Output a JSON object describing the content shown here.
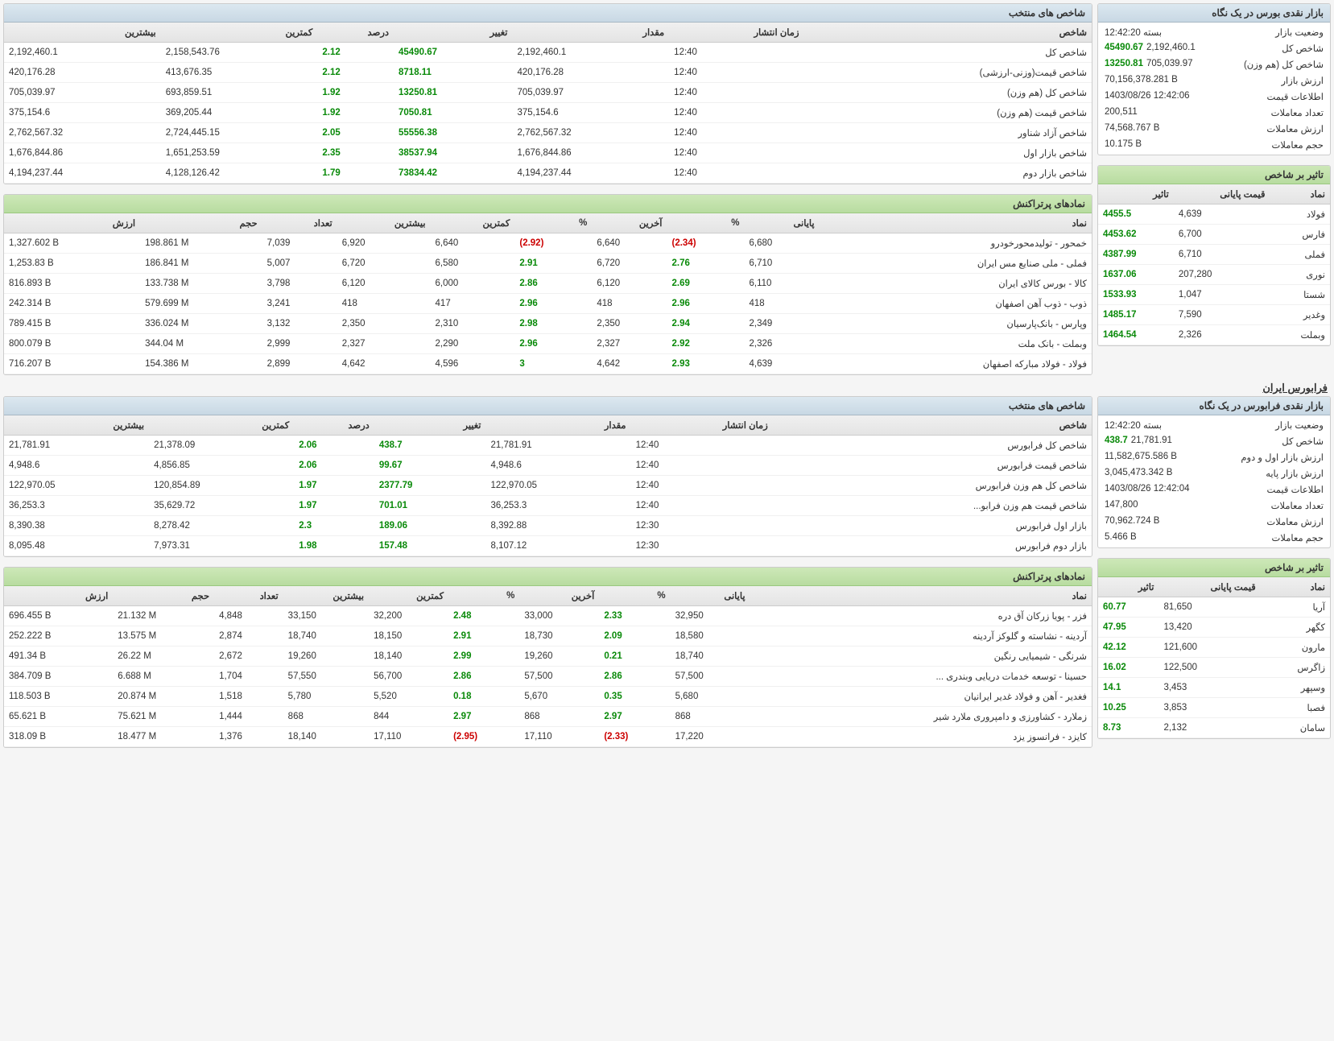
{
  "tse": {
    "glance": {
      "title": "بازار نقدی بورس در یک نگاه",
      "rows": [
        {
          "k": "وضعیت بازار",
          "v": "بسته 12:42:20"
        },
        {
          "k": "شاخص کل",
          "v": "2,192,460.1",
          "sub": "45490.67"
        },
        {
          "k": "شاخص کل (هم وزن)",
          "v": "705,039.97",
          "sub": "13250.81"
        },
        {
          "k": "ارزش بازار",
          "v": "70,156,378.281 B"
        },
        {
          "k": "اطلاعات قیمت",
          "v": "1403/08/26 12:42:06"
        },
        {
          "k": "تعداد معاملات",
          "v": "200,511"
        },
        {
          "k": "ارزش معاملات",
          "v": "74,568.767 B"
        },
        {
          "k": "حجم معاملات",
          "v": "10.175 B"
        }
      ]
    },
    "selected_indices": {
      "title": "شاخص های منتخب",
      "columns": [
        "شاخص",
        "زمان انتشار",
        "مقدار",
        "تغییر",
        "درصد",
        "کمترین",
        "بیشترین"
      ],
      "rows": [
        [
          "شاخص کل",
          "12:40",
          "2,192,460.1",
          "45490.67",
          "2.12",
          "2,158,543.76",
          "2,192,460.1"
        ],
        [
          "شاخص قیمت(وزنی-ارزشی)",
          "12:40",
          "420,176.28",
          "8718.11",
          "2.12",
          "413,676.35",
          "420,176.28"
        ],
        [
          "شاخص کل (هم وزن)",
          "12:40",
          "705,039.97",
          "13250.81",
          "1.92",
          "693,859.51",
          "705,039.97"
        ],
        [
          "شاخص قیمت (هم وزن)",
          "12:40",
          "375,154.6",
          "7050.81",
          "1.92",
          "369,205.44",
          "375,154.6"
        ],
        [
          "شاخص آزاد شناور",
          "12:40",
          "2,762,567.32",
          "55556.38",
          "2.05",
          "2,724,445.15",
          "2,762,567.32"
        ],
        [
          "شاخص بازار اول",
          "12:40",
          "1,676,844.86",
          "38537.94",
          "2.35",
          "1,651,253.59",
          "1,676,844.86"
        ],
        [
          "شاخص بازار دوم",
          "12:40",
          "4,194,237.44",
          "73834.42",
          "1.79",
          "4,128,126.42",
          "4,194,237.44"
        ]
      ]
    },
    "index_effect": {
      "title": "تاثیر بر شاخص",
      "columns": [
        "نماد",
        "قیمت پایانی",
        "تاثیر"
      ],
      "rows": [
        [
          "فولاد",
          "4,639",
          "4455.5"
        ],
        [
          "فارس",
          "6,700",
          "4453.62"
        ],
        [
          "فملی",
          "6,710",
          "4387.99"
        ],
        [
          "نوری",
          "207,280",
          "1637.06"
        ],
        [
          "شستا",
          "1,047",
          "1533.93"
        ],
        [
          "وغدیر",
          "7,590",
          "1485.17"
        ],
        [
          "وبملت",
          "2,326",
          "1464.54"
        ]
      ]
    },
    "top_trades": {
      "title": "نمادهای پرتراکنش",
      "columns": [
        "نماد",
        "پایانی",
        "%",
        "آخرین",
        "%",
        "کمترین",
        "بیشترین",
        "تعداد",
        "حجم",
        "ارزش"
      ],
      "rows": [
        [
          "خمحور - تولیدمحورخودرو",
          "6,680",
          "(2.34)",
          "6,640",
          "(2.92)",
          "6,640",
          "6,920",
          "7,039",
          "198.861 M",
          "1,327.602 B"
        ],
        [
          "فملی - ملی صنایع مس ایران",
          "6,710",
          "2.76",
          "6,720",
          "2.91",
          "6,580",
          "6,720",
          "5,007",
          "186.841 M",
          "1,253.83 B"
        ],
        [
          "کالا - بورس کالای ایران",
          "6,110",
          "2.69",
          "6,120",
          "2.86",
          "6,000",
          "6,120",
          "3,798",
          "133.738 M",
          "816.893 B"
        ],
        [
          "ذوب - ذوب آهن اصفهان",
          "418",
          "2.96",
          "418",
          "2.96",
          "417",
          "418",
          "3,241",
          "579.699 M",
          "242.314 B"
        ],
        [
          "وپارس - بانک‌پارسیان",
          "2,349",
          "2.94",
          "2,350",
          "2.98",
          "2,310",
          "2,350",
          "3,132",
          "336.024 M",
          "789.415 B"
        ],
        [
          "وبملت - بانک ملت",
          "2,326",
          "2.92",
          "2,327",
          "2.96",
          "2,290",
          "2,327",
          "2,999",
          "344.04 M",
          "800.079 B"
        ],
        [
          "فولاد - فولاد مبارکه اصفهان",
          "4,639",
          "2.93",
          "4,642",
          "3",
          "4,596",
          "4,642",
          "2,899",
          "154.386 M",
          "716.207 B"
        ]
      ]
    }
  },
  "ifb": {
    "section_title": "فرابورس ایران",
    "glance": {
      "title": "بازار نقدی فرابورس در یک نگاه",
      "rows": [
        {
          "k": "وضعیت بازار",
          "v": "بسته 12:42:20"
        },
        {
          "k": "شاخص کل",
          "v": "21,781.91",
          "sub": "438.7"
        },
        {
          "k": "ارزش بازار اول و دوم",
          "v": "11,582,675.586 B"
        },
        {
          "k": "ارزش بازار پایه",
          "v": "3,045,473.342 B"
        },
        {
          "k": "اطلاعات قیمت",
          "v": "1403/08/26 12:42:04"
        },
        {
          "k": "تعداد معاملات",
          "v": "147,800"
        },
        {
          "k": "ارزش معاملات",
          "v": "70,962.724 B"
        },
        {
          "k": "حجم معاملات",
          "v": "5.466 B"
        }
      ]
    },
    "selected_indices": {
      "title": "شاخص های منتخب",
      "columns": [
        "شاخص",
        "زمان انتشار",
        "مقدار",
        "تغییر",
        "درصد",
        "کمترین",
        "بیشترین"
      ],
      "rows": [
        [
          "شاخص کل فرابورس",
          "12:40",
          "21,781.91",
          "438.7",
          "2.06",
          "21,378.09",
          "21,781.91"
        ],
        [
          "شاخص قیمت فرابورس",
          "12:40",
          "4,948.6",
          "99.67",
          "2.06",
          "4,856.85",
          "4,948.6"
        ],
        [
          "شاخص کل هم وزن فرابورس",
          "12:40",
          "122,970.05",
          "2377.79",
          "1.97",
          "120,854.89",
          "122,970.05"
        ],
        [
          "شاخص قیمت هم وزن فرابو...",
          "12:40",
          "36,253.3",
          "701.01",
          "1.97",
          "35,629.72",
          "36,253.3"
        ],
        [
          "بازار اول فرابورس",
          "12:30",
          "8,392.88",
          "189.06",
          "2.3",
          "8,278.42",
          "8,390.38"
        ],
        [
          "بازار دوم فرابورس",
          "12:30",
          "8,107.12",
          "157.48",
          "1.98",
          "7,973.31",
          "8,095.48"
        ]
      ]
    },
    "index_effect": {
      "title": "تاثیر بر شاخص",
      "columns": [
        "نماد",
        "قیمت پایانی",
        "تاثیر"
      ],
      "rows": [
        [
          "آریا",
          "81,650",
          "60.77"
        ],
        [
          "کگهر",
          "13,420",
          "47.95"
        ],
        [
          "مارون",
          "121,600",
          "42.12"
        ],
        [
          "زاگرس",
          "122,500",
          "16.02"
        ],
        [
          "وسپهر",
          "3,453",
          "14.1"
        ],
        [
          "فصبا",
          "3,853",
          "10.25"
        ],
        [
          "سامان",
          "2,132",
          "8.73"
        ]
      ]
    },
    "top_trades": {
      "title": "نمادهای پرتراکنش",
      "columns": [
        "نماد",
        "پایانی",
        "%",
        "آخرین",
        "%",
        "کمترین",
        "بیشترین",
        "تعداد",
        "حجم",
        "ارزش"
      ],
      "rows": [
        [
          "فزر - پویا زرکان آق دره",
          "32,950",
          "2.33",
          "33,000",
          "2.48",
          "32,200",
          "33,150",
          "4,848",
          "21.132 M",
          "696.455 B"
        ],
        [
          "آردینه - نشاسته و گلوکز آردینه",
          "18,580",
          "2.09",
          "18,730",
          "2.91",
          "18,150",
          "18,740",
          "2,874",
          "13.575 M",
          "252.222 B"
        ],
        [
          "شرنگی - شیمیایی رنگین",
          "18,740",
          "0.21",
          "19,260",
          "2.99",
          "18,140",
          "19,260",
          "2,672",
          "26.22 M",
          "491.34 B"
        ],
        [
          "حسینا - توسعه خدمات دریایی وبندری ...",
          "57,500",
          "2.86",
          "57,500",
          "2.86",
          "56,700",
          "57,550",
          "1,704",
          "6.688 M",
          "384.709 B"
        ],
        [
          "فغدیر - آهن و فولاد غدیر ایرانیان",
          "5,680",
          "0.35",
          "5,670",
          "0.18",
          "5,520",
          "5,780",
          "1,518",
          "20.874 M",
          "118.503 B"
        ],
        [
          "زملارد - کشاورزی و دامپروری ملارد شیر",
          "868",
          "2.97",
          "868",
          "2.97",
          "844",
          "868",
          "1,444",
          "75.621 M",
          "65.621 B"
        ],
        [
          "کایزد - فرانسوز یزد",
          "17,220",
          "(2.33)",
          "17,110",
          "(2.95)",
          "17,110",
          "18,140",
          "1,376",
          "18.477 M",
          "318.09 B"
        ]
      ]
    }
  },
  "colors": {
    "positive": "#0a8a0a",
    "negative": "#c00"
  }
}
